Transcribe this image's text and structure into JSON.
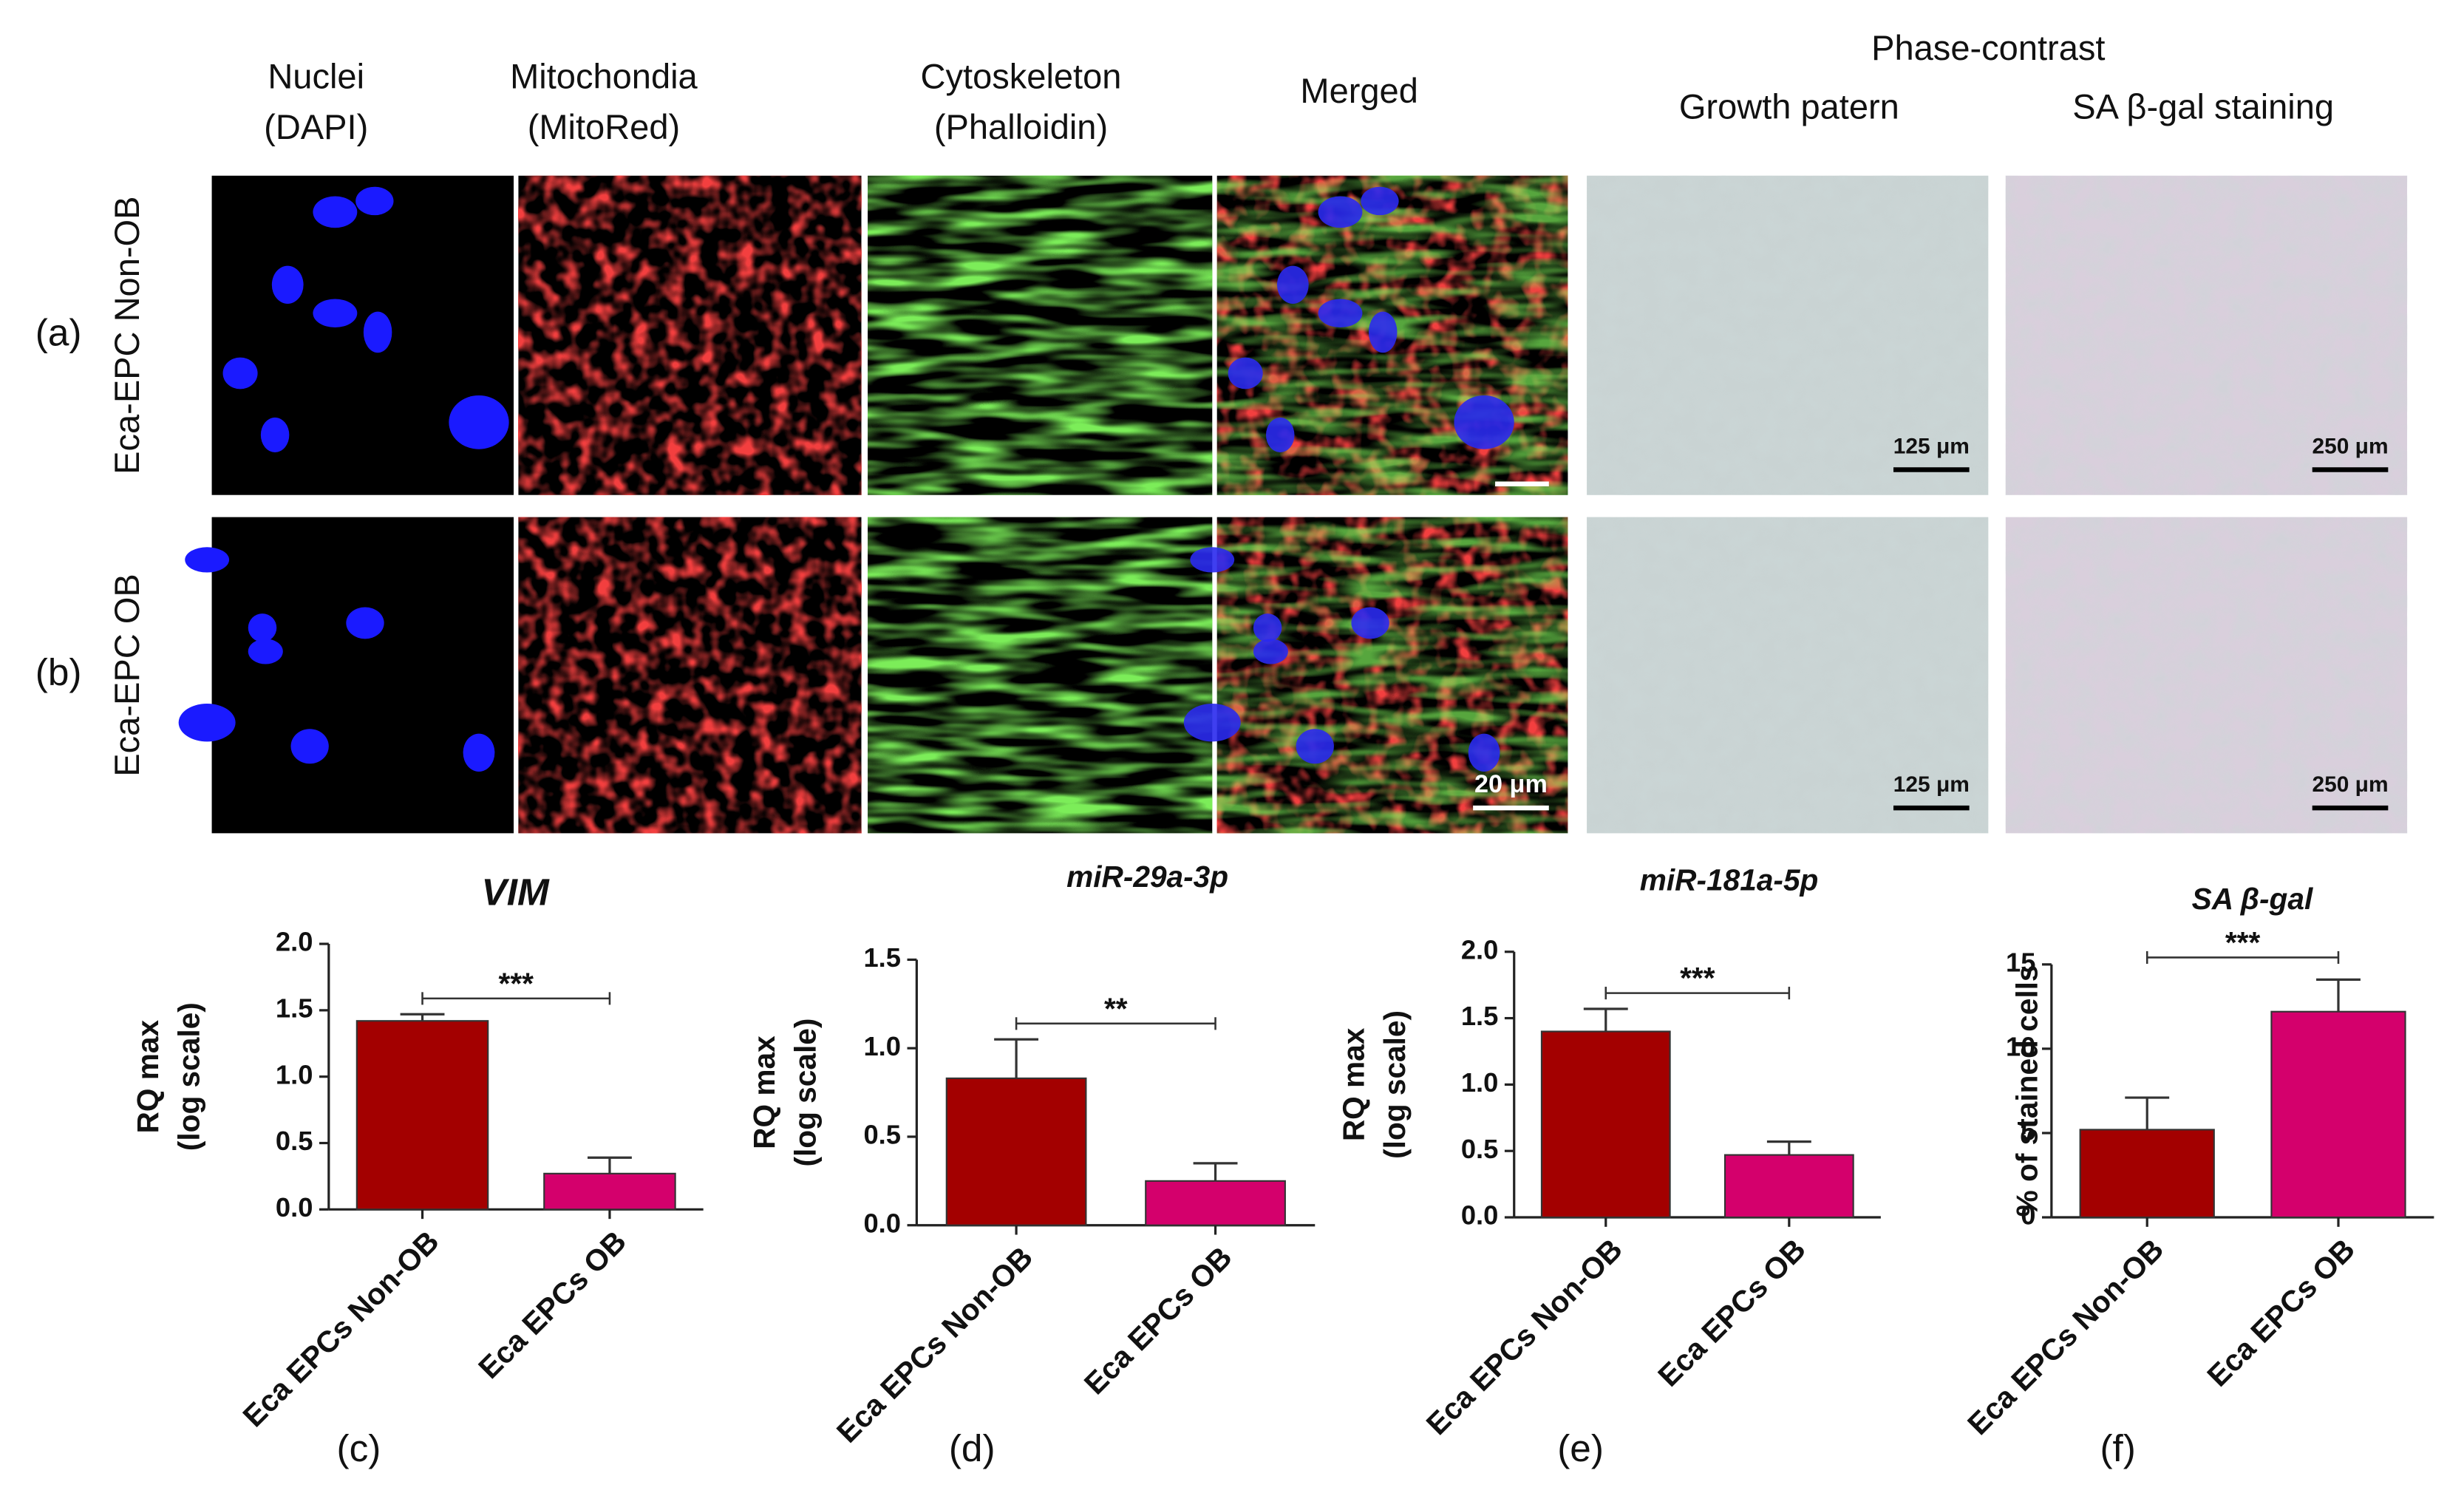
{
  "header": {
    "columns": [
      [
        "Nuclei",
        "(DAPI)"
      ],
      [
        "Mitochondia",
        "(MitoRed)"
      ],
      [
        "Cytoskeleton",
        "(Phalloidin)"
      ],
      [
        "Merged"
      ],
      [
        "Growth patern"
      ],
      [
        "SA β-gal staining"
      ]
    ],
    "group": "Phase-contrast"
  },
  "rows": [
    {
      "label": "(a)",
      "name": "Eca-EPC Non-OB",
      "scale_bars": [
        "125 μm",
        "250 μm"
      ]
    },
    {
      "label": "(b)",
      "name": "Eca-EPC OB",
      "scale_bars": [
        "20 μm",
        "125 μm",
        "250 μm"
      ]
    }
  ],
  "chart_data": [
    {
      "type": "bar",
      "title": "VIM",
      "panel": "(c)",
      "ylabel": [
        "RQ max",
        "(log scale)"
      ],
      "categories": [
        "Eca EPCs Non-OB",
        "Eca EPCs OB"
      ],
      "values": [
        1.42,
        0.27
      ],
      "errors": [
        0.05,
        0.12
      ],
      "colors": [
        "#a30000",
        "#d4006c"
      ],
      "significance": "***",
      "ylim": [
        0,
        2.0
      ],
      "yticks": [
        {
          "value": 0,
          "label": "0.0"
        },
        {
          "value": 0.5,
          "label": "0.5"
        },
        {
          "value": 1,
          "label": "1.0"
        },
        {
          "value": 1.5,
          "label": "1.5"
        },
        {
          "value": 2,
          "label": "2.0"
        }
      ]
    },
    {
      "type": "bar",
      "title": "miR-29a-3p",
      "panel": "(d)",
      "ylabel": [
        "RQ max",
        "(log scale)"
      ],
      "categories": [
        "Eca EPCs Non-OB",
        "Eca EPCs OB"
      ],
      "values": [
        0.83,
        0.25
      ],
      "errors": [
        0.22,
        0.1
      ],
      "colors": [
        "#a30000",
        "#d4006c"
      ],
      "significance": "**",
      "ylim": [
        0,
        1.5
      ],
      "yticks": [
        {
          "value": 0,
          "label": "0.0"
        },
        {
          "value": 0.5,
          "label": "0.5"
        },
        {
          "value": 1,
          "label": "1.0"
        },
        {
          "value": 1.5,
          "label": "1.5"
        }
      ]
    },
    {
      "type": "bar",
      "title": "miR-181a-5p",
      "panel": "(e)",
      "ylabel": [
        "RQ max",
        "(log scale)"
      ],
      "categories": [
        "Eca EPCs Non-OB",
        "Eca EPCs OB"
      ],
      "values": [
        1.4,
        0.47
      ],
      "errors": [
        0.17,
        0.1
      ],
      "colors": [
        "#a30000",
        "#d4006c"
      ],
      "significance": "***",
      "ylim": [
        0,
        2.0
      ],
      "yticks": [
        {
          "value": 0,
          "label": "0.0"
        },
        {
          "value": 0.5,
          "label": "0.5"
        },
        {
          "value": 1,
          "label": "1.0"
        },
        {
          "value": 1.5,
          "label": "1.5"
        },
        {
          "value": 2,
          "label": "2.0"
        }
      ]
    },
    {
      "type": "bar",
      "title": "SA β-gal",
      "panel": "(f)",
      "ylabel": [
        "% of stained cells"
      ],
      "categories": [
        "Eca EPCs Non-OB",
        "Eca EPCs OB"
      ],
      "values": [
        5.2,
        12.2
      ],
      "errors": [
        1.9,
        1.9
      ],
      "colors": [
        "#a30000",
        "#d4006c"
      ],
      "significance": "***",
      "ylim": [
        0,
        15
      ],
      "yticks": [
        0,
        5,
        10,
        15
      ]
    }
  ]
}
